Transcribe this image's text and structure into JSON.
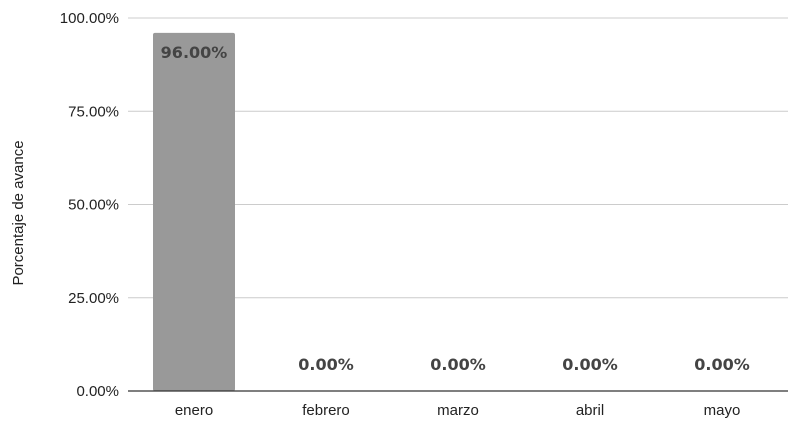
{
  "chart_data": {
    "type": "bar",
    "categories": [
      "enero",
      "febrero",
      "marzo",
      "abril",
      "mayo"
    ],
    "values": [
      96.0,
      0.0,
      0.0,
      0.0,
      0.0
    ],
    "data_labels": [
      "96.00%",
      "0.00%",
      "0.00%",
      "0.00%",
      "0.00%"
    ],
    "ylabel": "Porcentaje de avance",
    "ylim": [
      0,
      100
    ],
    "yticks": [
      0,
      25,
      50,
      75,
      100
    ],
    "ytick_labels": [
      "0.00%",
      "25.00%",
      "50.00%",
      "75.00%",
      "100.00%"
    ],
    "grid": true,
    "bar_color": "#999999",
    "grid_color": "#cccccc",
    "axis_color": "#333333",
    "label_color": "#444444"
  }
}
